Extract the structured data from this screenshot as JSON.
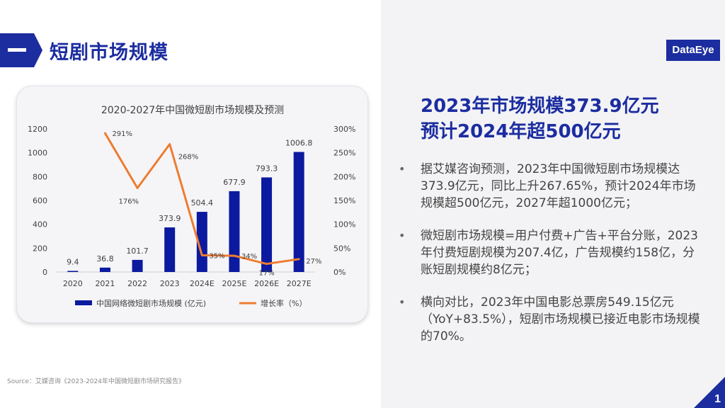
{
  "header": {
    "section_title": "短剧市场规模",
    "logo": "DataEye"
  },
  "headline": {
    "line1": "2023年市场规模373.9亿元",
    "line2": "预计2024年超500亿元"
  },
  "bullets": [
    "据艾媒咨询预测，2023年中国微短剧市场规模达373.9亿元，同比上升267.65%，预计2024年市场规模超500亿元，2027年超1000亿元；",
    "微短剧市场规模=用户付费+广告+平台分账，2023年付费短剧规模为207.4亿，广告规模约158亿，分账短剧规模约8亿元；",
    "横向对比，2023年中国电影总票房549.15亿元（YoY+83.5%），短剧市场规模已接近电影市场规模的70%。"
  ],
  "source": "Source：艾媒咨询《2023-2024年中国微短剧市场研究报告》",
  "page_number": "1",
  "colors": {
    "brand": "#1c2da0",
    "bar": "#0b1a9e",
    "line": "#ed7d31"
  },
  "chart_data": {
    "type": "bar",
    "title": "2020-2027年中国微短剧市场规模及预测",
    "categories": [
      "2020",
      "2021",
      "2022",
      "2023",
      "2024E",
      "2025E",
      "2026E",
      "2027E"
    ],
    "series": [
      {
        "name": "中国网络微短剧市场规模 (亿元)",
        "type": "bar",
        "axis": "left",
        "values": [
          9.4,
          36.8,
          101.7,
          373.9,
          504.4,
          677.9,
          793.3,
          1006.8
        ],
        "labels": [
          "9.4",
          "36.8",
          "101.7",
          "373.9",
          "504.4",
          "677.9",
          "793.3",
          "1006.8"
        ]
      },
      {
        "name": "增长率（%）",
        "type": "line",
        "axis": "right",
        "values": [
          null,
          291,
          176,
          268,
          35,
          34,
          17,
          27
        ],
        "labels": [
          "",
          "291%",
          "176%",
          "268%",
          "35%",
          "34%",
          "17%",
          "27%"
        ]
      }
    ],
    "ylim": [
      0,
      1200
    ],
    "y_ticks": [
      "0",
      "200",
      "400",
      "600",
      "800",
      "1000",
      "1200"
    ],
    "y2lim": [
      0,
      300
    ],
    "y2_ticks": [
      "0%",
      "50%",
      "100%",
      "150%",
      "200%",
      "250%",
      "300%"
    ],
    "legend": "bottom",
    "grid": false
  }
}
